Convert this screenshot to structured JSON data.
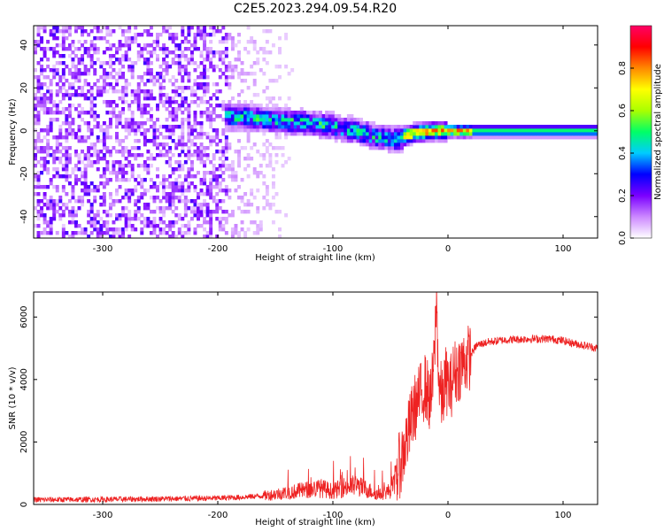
{
  "figure_title": "C2E5.2023.294.09.54.R20",
  "colors": {
    "snr_line": "#ee2222",
    "axis": "#000000"
  },
  "chart_data": [
    {
      "type": "heatmap",
      "title": "",
      "xlabel": "Height of straight line (km)",
      "ylabel": "Frequency (Hz)",
      "xlim": [
        -360,
        130
      ],
      "ylim": [
        -50,
        49
      ],
      "x_ticks": [
        -300,
        -200,
        -100,
        0,
        100
      ],
      "y_ticks": [
        -40,
        -20,
        0,
        20,
        40
      ],
      "colorbar": {
        "label": "Normalized spectral amplitude",
        "range": [
          0,
          1
        ],
        "ticks": [
          "0.0",
          "0.2",
          "0.4",
          "0.6",
          "0.8"
        ],
        "colormap": [
          "#ffffff",
          "#cc88ff",
          "#7a00ff",
          "#0000ff",
          "#00ccff",
          "#00ff66",
          "#aaff00",
          "#ffff00",
          "#ff8800",
          "#ff0000",
          "#ff0066"
        ]
      },
      "description_points": {
        "noise_region_x": [
          -360,
          -190
        ],
        "signal_start_x": -195,
        "signal_ridge": [
          {
            "x": -190,
            "f": 7
          },
          {
            "x": -150,
            "f": 5
          },
          {
            "x": -110,
            "f": 3
          },
          {
            "x": -80,
            "f": 0
          },
          {
            "x": -60,
            "f": -3
          },
          {
            "x": -45,
            "f": -4
          },
          {
            "x": -30,
            "f": -1
          },
          {
            "x": -10,
            "f": 0
          },
          {
            "x": 20,
            "f": 0
          },
          {
            "x": 60,
            "f": 0
          },
          {
            "x": 130,
            "f": 0
          }
        ]
      }
    },
    {
      "type": "line",
      "title": "",
      "xlabel": "Height of straight line (km)",
      "ylabel": "SNR (10 * v/v)",
      "xlim": [
        -360,
        130
      ],
      "ylim": [
        0,
        6800
      ],
      "x_ticks": [
        -300,
        -200,
        -100,
        0,
        100
      ],
      "y_ticks": [
        0,
        2000,
        4000,
        6000
      ],
      "series": [
        {
          "name": "",
          "points": [
            [
              -360,
              150
            ],
            [
              -300,
              160
            ],
            [
              -250,
              180
            ],
            [
              -200,
              200
            ],
            [
              -180,
              230
            ],
            [
              -160,
              280
            ],
            [
              -140,
              380
            ],
            [
              -120,
              480
            ],
            [
              -110,
              520
            ],
            [
              -100,
              420
            ],
            [
              -90,
              560
            ],
            [
              -80,
              600
            ],
            [
              -70,
              480
            ],
            [
              -60,
              300
            ],
            [
              -50,
              450
            ],
            [
              -45,
              900
            ],
            [
              -40,
              1500
            ],
            [
              -35,
              2200
            ],
            [
              -30,
              3000
            ],
            [
              -25,
              3400
            ],
            [
              -20,
              3800
            ],
            [
              -15,
              3300
            ],
            [
              -12,
              4500
            ],
            [
              -10,
              6600
            ],
            [
              -8,
              3900
            ],
            [
              -5,
              3300
            ],
            [
              -2,
              4000
            ],
            [
              2,
              3700
            ],
            [
              5,
              4200
            ],
            [
              8,
              4300
            ],
            [
              12,
              4500
            ],
            [
              18,
              4700
            ],
            [
              25,
              5100
            ],
            [
              35,
              5200
            ],
            [
              50,
              5270
            ],
            [
              70,
              5300
            ],
            [
              90,
              5300
            ],
            [
              100,
              5240
            ],
            [
              110,
              5150
            ],
            [
              120,
              5080
            ],
            [
              130,
              5000
            ]
          ]
        }
      ]
    }
  ]
}
